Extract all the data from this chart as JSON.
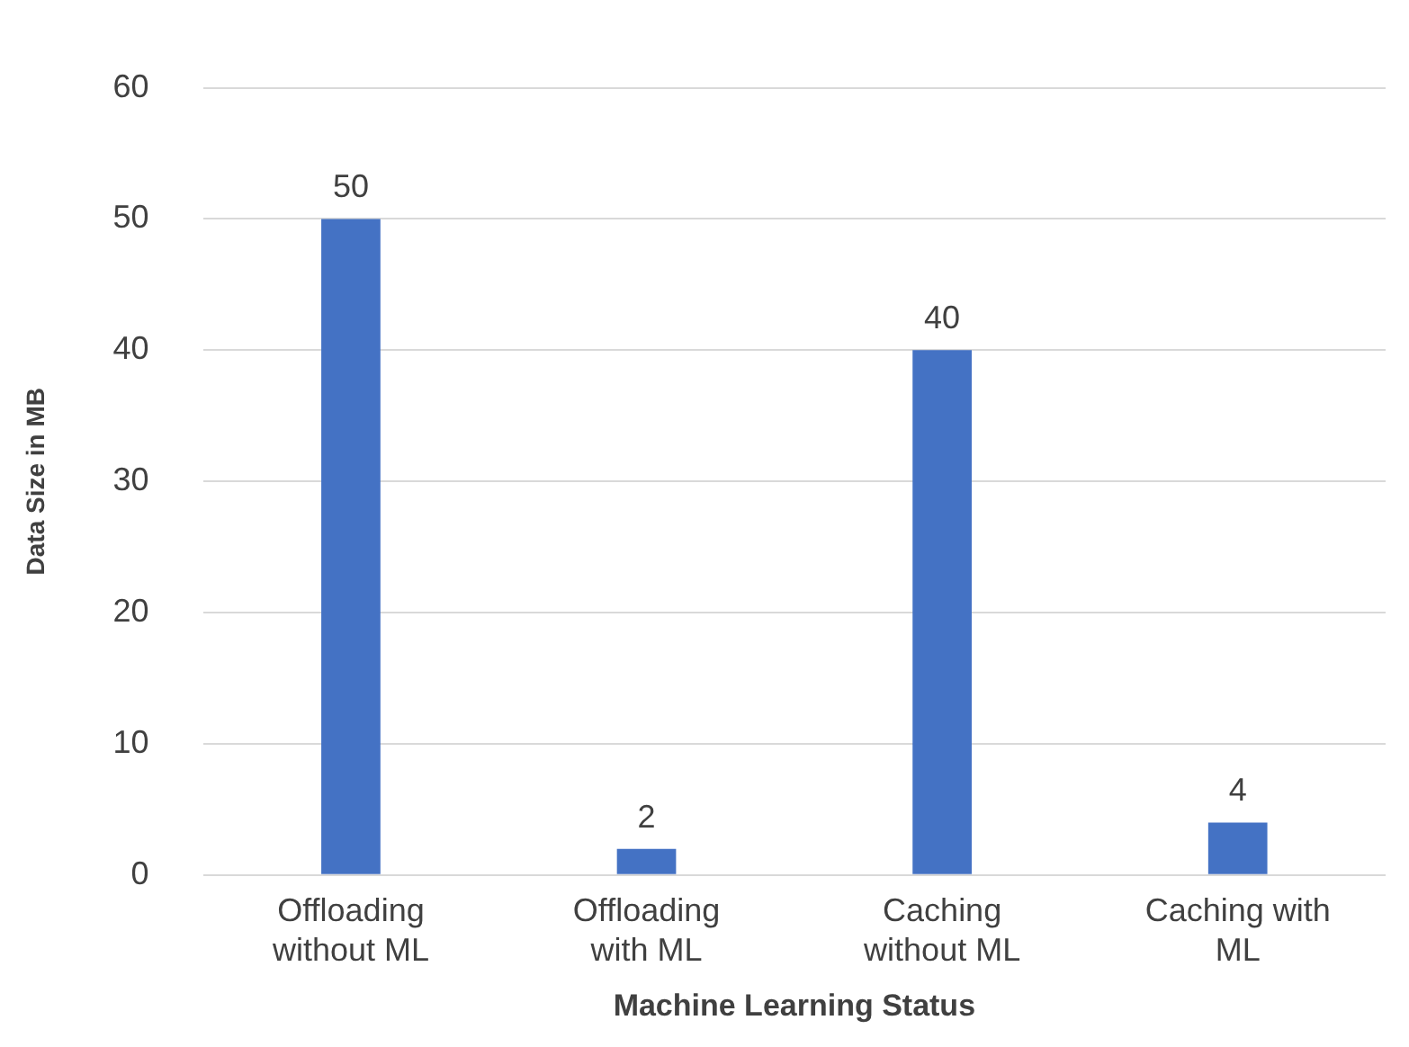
{
  "chart_data": {
    "type": "bar",
    "xlabel": "Machine Learning Status",
    "ylabel": "Data Size in MB",
    "categories": [
      "Offloading without ML",
      "Offloading with ML",
      "Caching without ML",
      "Caching with ML"
    ],
    "values": [
      50,
      2,
      40,
      4
    ],
    "color": "#4472c4",
    "ylim": [
      0,
      60
    ],
    "yticks": [
      0,
      10,
      20,
      30,
      40,
      50,
      60
    ],
    "grid": "y",
    "data_labels": true
  }
}
